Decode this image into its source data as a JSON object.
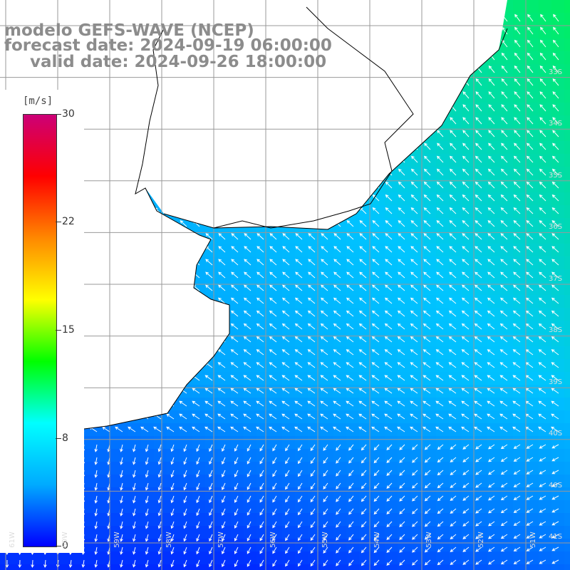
{
  "title": {
    "model": "modelo GEFS-WAVE (NCEP)",
    "forecast": "forecast date: 2024-09-19 06:00:00",
    "valid": "valid date: 2024-09-26 18:00:00"
  },
  "legend": {
    "unit": "[m/s]",
    "ticks": [
      {
        "label": "30",
        "value": 30
      },
      {
        "label": "22",
        "value": 22
      },
      {
        "label": "15",
        "value": 15
      },
      {
        "label": "8",
        "value": 8
      },
      {
        "label": "0",
        "value": 0
      }
    ],
    "colors": [
      "#0000ff",
      "#00aaff",
      "#00ffff",
      "#00ff00",
      "#ffff00",
      "#ff8800",
      "#ff0000",
      "#cc0077"
    ]
  },
  "grid_labels": {
    "lat": [
      "33S",
      "34S",
      "35S",
      "36S",
      "37S",
      "38S",
      "39S",
      "40S",
      "41S"
    ],
    "lon": [
      "61W",
      "60W",
      "59W",
      "58W",
      "57W",
      "56W",
      "55W",
      "54W",
      "53W",
      "52W",
      "51W"
    ]
  },
  "colors": {
    "land": "#ffffff",
    "coastline": "#000000",
    "grid": "#999999",
    "vectors": "#ffffff"
  }
}
